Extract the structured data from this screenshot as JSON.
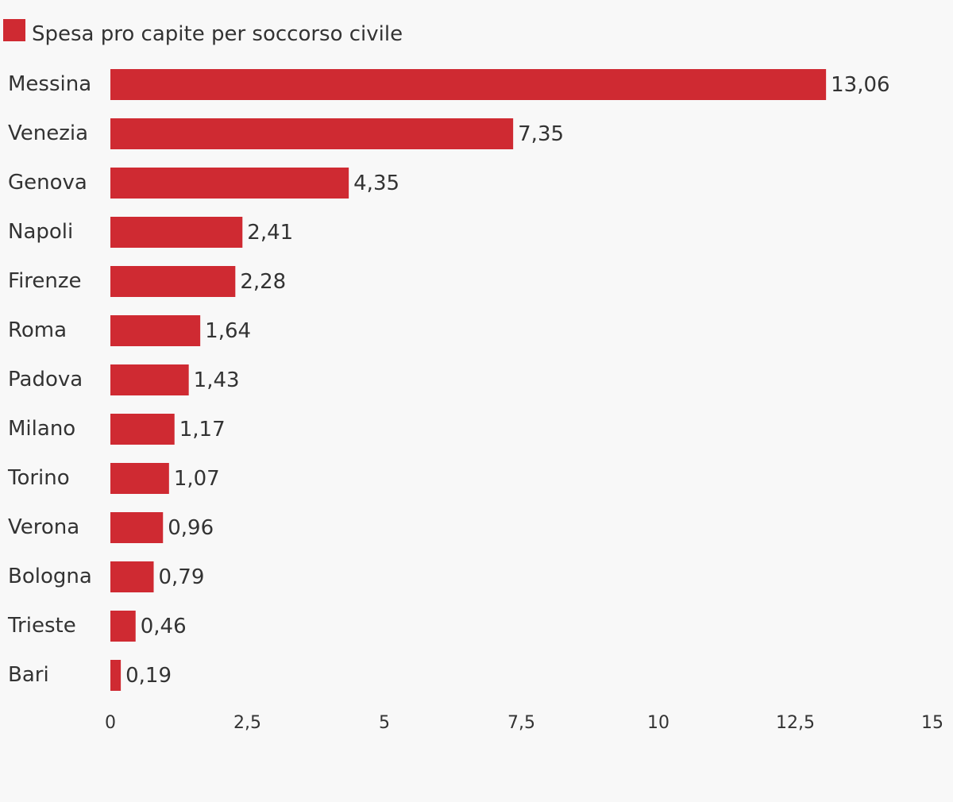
{
  "chart_data": {
    "type": "bar",
    "orientation": "horizontal",
    "title": "",
    "xlabel": "",
    "ylabel": "",
    "categories": [
      "Messina",
      "Venezia",
      "Genova",
      "Napoli",
      "Firenze",
      "Roma",
      "Padova",
      "Milano",
      "Torino",
      "Verona",
      "Bologna",
      "Trieste",
      "Bari"
    ],
    "series": [
      {
        "name": "Spesa pro capite per soccorso civile",
        "values": [
          13.06,
          7.35,
          4.35,
          2.41,
          2.28,
          1.64,
          1.43,
          1.17,
          1.07,
          0.96,
          0.79,
          0.46,
          0.19
        ],
        "labels": [
          "13,06",
          "7,35",
          "4,35",
          "2,41",
          "2,28",
          "1,64",
          "1,43",
          "1,17",
          "1,07",
          "0,96",
          "0,79",
          "0,46",
          "0,19"
        ],
        "color": "#cf2a32"
      }
    ],
    "xlim": [
      0,
      15
    ],
    "ticks": [
      0,
      2.5,
      5,
      7.5,
      10,
      12.5,
      15
    ],
    "tick_labels": [
      "0",
      "2,5",
      "5",
      "7,5",
      "10",
      "12,5",
      "15"
    ],
    "grid": false,
    "legend": {
      "position": "top-left"
    },
    "colors": {
      "background": "#f8f8f8",
      "text": "#333333"
    }
  }
}
